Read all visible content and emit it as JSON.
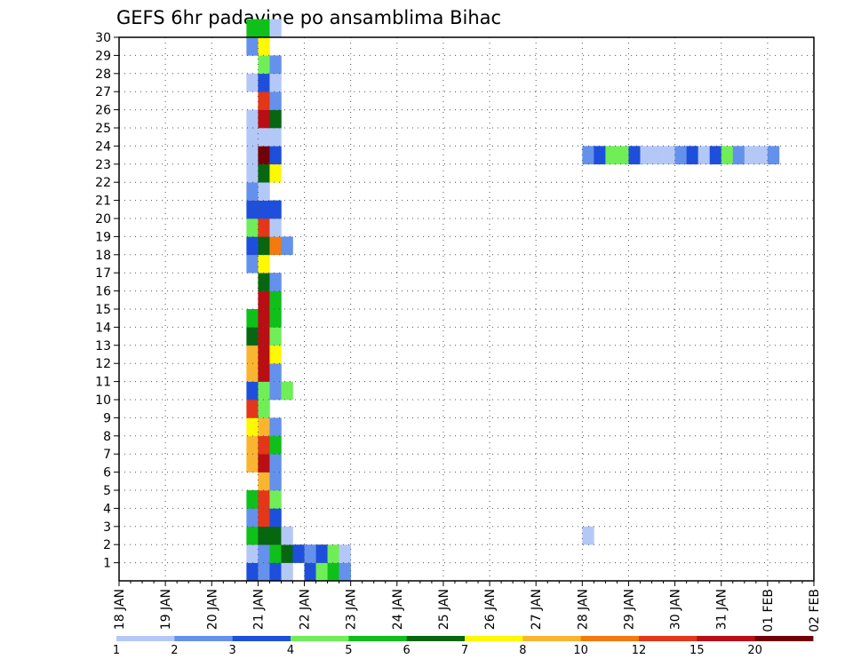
{
  "chart_data": {
    "type": "heatmap",
    "title": "GEFS 6hr padavine po ansamblima Bihac",
    "y_ticks": [
      "1",
      "2",
      "3",
      "4",
      "5",
      "6",
      "7",
      "8",
      "9",
      "10",
      "11",
      "12",
      "13",
      "14",
      "15",
      "16",
      "17",
      "18",
      "19",
      "20",
      "21",
      "22",
      "23",
      "24",
      "25",
      "26",
      "27",
      "28",
      "29",
      "30"
    ],
    "x_ticks": [
      "18 JAN",
      "19 JAN",
      "20 JAN",
      "21 JAN",
      "22 JAN",
      "23 JAN",
      "24 JAN",
      "25 JAN",
      "26 JAN",
      "27 JAN",
      "28 JAN",
      "29 JAN",
      "30 JAN",
      "31 JAN",
      "01 FEB",
      "02 FEB"
    ],
    "x_steps_per_day": 4,
    "x_range_steps": [
      0,
      60
    ],
    "y_range": [
      0,
      30
    ],
    "grid": true,
    "colorbar": {
      "labels": [
        "1",
        "2",
        "3",
        "4",
        "5",
        "6",
        "7",
        "8",
        "10",
        "12",
        "15",
        "20"
      ],
      "colors": [
        "#b4c8f8",
        "#6491ec",
        "#1d4fdc",
        "#70ee58",
        "#10c01a",
        "#066710",
        "#fef800",
        "#fab530",
        "#f47a0e",
        "#e43618",
        "#b90e14",
        "#720008"
      ]
    },
    "cells": [
      [
        0,
        11,
        2
      ],
      [
        0,
        12,
        1
      ],
      [
        0,
        13,
        2
      ],
      [
        0,
        14,
        0
      ],
      [
        1,
        11,
        0
      ],
      [
        1,
        12,
        1
      ],
      [
        1,
        13,
        4
      ],
      [
        1,
        14,
        5
      ],
      [
        1,
        15,
        2
      ],
      [
        2,
        11,
        4
      ],
      [
        2,
        12,
        5
      ],
      [
        2,
        13,
        5
      ],
      [
        2,
        14,
        0
      ],
      [
        3,
        11,
        1
      ],
      [
        3,
        12,
        9
      ],
      [
        3,
        13,
        2
      ],
      [
        4,
        11,
        4
      ],
      [
        4,
        12,
        9
      ],
      [
        4,
        13,
        3
      ],
      [
        5,
        12,
        7
      ],
      [
        5,
        13,
        1
      ],
      [
        6,
        11,
        7
      ],
      [
        6,
        12,
        10
      ],
      [
        6,
        13,
        1
      ],
      [
        7,
        11,
        7
      ],
      [
        7,
        12,
        9
      ],
      [
        7,
        13,
        4
      ],
      [
        8,
        11,
        6
      ],
      [
        8,
        12,
        7
      ],
      [
        8,
        13,
        1
      ],
      [
        9,
        11,
        9
      ],
      [
        9,
        12,
        3
      ],
      [
        10,
        11,
        2
      ],
      [
        10,
        12,
        3
      ],
      [
        10,
        13,
        1
      ],
      [
        10,
        14,
        3
      ],
      [
        11,
        11,
        7
      ],
      [
        11,
        12,
        10
      ],
      [
        11,
        13,
        1
      ],
      [
        12,
        11,
        7
      ],
      [
        12,
        12,
        10
      ],
      [
        12,
        13,
        6
      ],
      [
        13,
        11,
        5
      ],
      [
        13,
        12,
        10
      ],
      [
        13,
        13,
        3
      ],
      [
        14,
        11,
        4
      ],
      [
        14,
        12,
        10
      ],
      [
        14,
        13,
        4
      ],
      [
        15,
        12,
        10
      ],
      [
        15,
        13,
        4
      ],
      [
        16,
        12,
        5
      ],
      [
        16,
        13,
        1
      ],
      [
        17,
        11,
        1
      ],
      [
        17,
        12,
        6
      ],
      [
        18,
        11,
        2
      ],
      [
        18,
        12,
        5
      ],
      [
        18,
        13,
        8
      ],
      [
        18,
        14,
        1
      ],
      [
        19,
        11,
        3
      ],
      [
        19,
        12,
        9
      ],
      [
        19,
        13,
        0
      ],
      [
        20,
        11,
        2
      ],
      [
        20,
        12,
        2
      ],
      [
        20,
        13,
        2
      ],
      [
        21,
        11,
        1
      ],
      [
        21,
        12,
        0
      ],
      [
        22,
        11,
        0
      ],
      [
        22,
        12,
        5
      ],
      [
        22,
        13,
        6
      ],
      [
        23,
        11,
        0
      ],
      [
        23,
        12,
        11
      ],
      [
        23,
        13,
        2
      ],
      [
        24,
        11,
        0
      ],
      [
        24,
        12,
        0
      ],
      [
        24,
        13,
        0
      ],
      [
        25,
        11,
        0
      ],
      [
        25,
        12,
        10
      ],
      [
        25,
        13,
        5
      ],
      [
        26,
        12,
        9
      ],
      [
        26,
        13,
        1
      ],
      [
        27,
        11,
        0
      ],
      [
        27,
        12,
        2
      ],
      [
        27,
        13,
        0
      ],
      [
        28,
        12,
        3
      ],
      [
        28,
        13,
        1
      ],
      [
        29,
        11,
        1
      ],
      [
        29,
        12,
        6
      ],
      [
        30,
        11,
        4
      ],
      [
        30,
        12,
        4
      ],
      [
        30,
        13,
        0
      ],
      [
        0,
        16,
        2
      ],
      [
        0,
        17,
        3
      ],
      [
        0,
        18,
        4
      ],
      [
        0,
        19,
        1
      ],
      [
        1,
        16,
        1
      ],
      [
        1,
        17,
        2
      ],
      [
        1,
        18,
        3
      ],
      [
        1,
        19,
        0
      ],
      [
        2,
        40,
        0
      ],
      [
        23,
        40,
        1
      ],
      [
        23,
        41,
        2
      ],
      [
        23,
        42,
        3
      ],
      [
        23,
        43,
        3
      ],
      [
        23,
        44,
        2
      ],
      [
        23,
        45,
        0
      ],
      [
        23,
        46,
        0
      ],
      [
        23,
        47,
        0
      ],
      [
        23,
        48,
        1
      ],
      [
        23,
        49,
        2
      ],
      [
        23,
        50,
        0
      ],
      [
        23,
        51,
        2
      ],
      [
        23,
        52,
        3
      ],
      [
        23,
        53,
        1
      ],
      [
        23,
        54,
        0
      ],
      [
        23,
        55,
        0
      ],
      [
        23,
        56,
        1
      ]
    ]
  }
}
